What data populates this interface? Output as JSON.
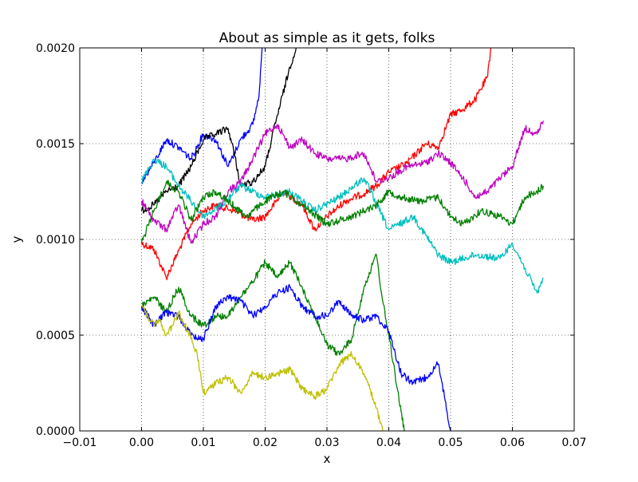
{
  "chart_data": {
    "type": "line",
    "title": "About as simple as it gets, folks",
    "xlabel": "x",
    "ylabel": "y",
    "xlim": [
      -0.01,
      0.07
    ],
    "ylim": [
      0.0,
      0.002
    ],
    "grid": true,
    "xticks": [
      {
        "value": -0.01,
        "label": "−0.01"
      },
      {
        "value": 0.0,
        "label": "0.00"
      },
      {
        "value": 0.01,
        "label": "0.01"
      },
      {
        "value": 0.02,
        "label": "0.02"
      },
      {
        "value": 0.03,
        "label": "0.03"
      },
      {
        "value": 0.04,
        "label": "0.04"
      },
      {
        "value": 0.05,
        "label": "0.05"
      },
      {
        "value": 0.06,
        "label": "0.06"
      },
      {
        "value": 0.07,
        "label": "0.07"
      }
    ],
    "yticks": [
      {
        "value": 0.0,
        "label": "0.0000"
      },
      {
        "value": 0.0005,
        "label": "0.0005"
      },
      {
        "value": 0.001,
        "label": "0.0010"
      },
      {
        "value": 0.0015,
        "label": "0.0015"
      },
      {
        "value": 0.002,
        "label": "0.0020"
      }
    ],
    "series": [
      {
        "color": "#ff0000",
        "x": [
          0.0,
          0.002,
          0.004,
          0.006,
          0.008,
          0.01,
          0.012,
          0.015,
          0.018,
          0.02,
          0.023,
          0.026,
          0.028,
          0.03,
          0.033,
          0.036,
          0.038,
          0.04,
          0.043,
          0.046,
          0.048,
          0.05,
          0.052,
          0.054,
          0.056,
          0.0565
        ],
        "y": [
          0.00098,
          0.00095,
          0.0008,
          0.00094,
          0.00108,
          0.00115,
          0.00118,
          0.00115,
          0.0011,
          0.00112,
          0.00125,
          0.00118,
          0.00105,
          0.00112,
          0.0012,
          0.00124,
          0.00128,
          0.00135,
          0.0014,
          0.0015,
          0.00148,
          0.00165,
          0.00168,
          0.00173,
          0.00185,
          0.002
        ]
      },
      {
        "color": "#0000ff",
        "x": [
          0.0,
          0.002,
          0.004,
          0.006,
          0.008,
          0.01,
          0.012,
          0.014,
          0.016,
          0.018,
          0.019,
          0.0195
        ],
        "y": [
          0.0013,
          0.0014,
          0.00152,
          0.00148,
          0.00142,
          0.00155,
          0.00152,
          0.00138,
          0.00152,
          0.0016,
          0.00175,
          0.002
        ]
      },
      {
        "color": "#000000",
        "x": [
          0.0,
          0.002,
          0.004,
          0.006,
          0.008,
          0.01,
          0.012,
          0.014,
          0.015,
          0.016,
          0.018,
          0.02,
          0.022,
          0.024,
          0.025
        ],
        "y": [
          0.00115,
          0.00118,
          0.00125,
          0.00128,
          0.00138,
          0.00152,
          0.00155,
          0.00158,
          0.00145,
          0.00128,
          0.0013,
          0.00138,
          0.00165,
          0.0019,
          0.002
        ]
      },
      {
        "color": "#00bfbf",
        "x": [
          0.0,
          0.002,
          0.004,
          0.006,
          0.008,
          0.01,
          0.013,
          0.016,
          0.02,
          0.024,
          0.028,
          0.032,
          0.036,
          0.04,
          0.044,
          0.048,
          0.05,
          0.054,
          0.058,
          0.06,
          0.062,
          0.064,
          0.065
        ],
        "y": [
          0.0013,
          0.00142,
          0.00138,
          0.00128,
          0.0012,
          0.00112,
          0.00118,
          0.00128,
          0.00122,
          0.00125,
          0.00115,
          0.00122,
          0.00132,
          0.00105,
          0.00112,
          0.00092,
          0.00088,
          0.00092,
          0.0009,
          0.00098,
          0.00085,
          0.00072,
          0.0008
        ]
      },
      {
        "color": "#bf00bf",
        "x": [
          0.0,
          0.002,
          0.004,
          0.006,
          0.008,
          0.01,
          0.012,
          0.014,
          0.016,
          0.018,
          0.02,
          0.022,
          0.024,
          0.026,
          0.028,
          0.03,
          0.033,
          0.036,
          0.038,
          0.04,
          0.043,
          0.046,
          0.048,
          0.05,
          0.052,
          0.054,
          0.056,
          0.058,
          0.06,
          0.062,
          0.064,
          0.065
        ],
        "y": [
          0.0012,
          0.0011,
          0.00105,
          0.00118,
          0.00098,
          0.00108,
          0.00112,
          0.00125,
          0.0013,
          0.00142,
          0.00155,
          0.0016,
          0.00148,
          0.00152,
          0.00145,
          0.00142,
          0.00142,
          0.00145,
          0.0013,
          0.00132,
          0.00138,
          0.0014,
          0.00145,
          0.0014,
          0.00132,
          0.00122,
          0.00125,
          0.00132,
          0.00138,
          0.00158,
          0.00155,
          0.00162
        ]
      },
      {
        "color": "#008000",
        "x": [
          0.0,
          0.002,
          0.004,
          0.006,
          0.008,
          0.01,
          0.012,
          0.014,
          0.017,
          0.02,
          0.023,
          0.026,
          0.03,
          0.034,
          0.038,
          0.04,
          0.042,
          0.045,
          0.048,
          0.05,
          0.052,
          0.055,
          0.058,
          0.06,
          0.062,
          0.064,
          0.065
        ],
        "y": [
          0.00098,
          0.00115,
          0.0013,
          0.00125,
          0.0011,
          0.00122,
          0.00125,
          0.0012,
          0.00112,
          0.0012,
          0.00125,
          0.00118,
          0.00108,
          0.00112,
          0.00118,
          0.00125,
          0.00122,
          0.0012,
          0.00122,
          0.00112,
          0.00108,
          0.00115,
          0.00112,
          0.00108,
          0.00122,
          0.00125,
          0.00128
        ]
      },
      {
        "color": "#008000",
        "x": [
          0.0,
          0.002,
          0.004,
          0.006,
          0.008,
          0.01,
          0.012,
          0.014,
          0.016,
          0.018,
          0.02,
          0.022,
          0.024,
          0.026,
          0.028,
          0.03,
          0.032,
          0.034,
          0.036,
          0.038,
          0.039,
          0.04,
          0.041,
          0.042,
          0.0425
        ],
        "y": [
          0.00065,
          0.0007,
          0.00062,
          0.00075,
          0.0006,
          0.00055,
          0.0006,
          0.0006,
          0.0007,
          0.00078,
          0.00088,
          0.0008,
          0.00088,
          0.00075,
          0.0006,
          0.00045,
          0.0004,
          0.00048,
          0.00075,
          0.00092,
          0.00068,
          0.0005,
          0.0003,
          0.0001,
          0.0
        ]
      },
      {
        "color": "#0000ff",
        "x": [
          0.0,
          0.002,
          0.004,
          0.006,
          0.008,
          0.01,
          0.012,
          0.014,
          0.016,
          0.018,
          0.02,
          0.022,
          0.024,
          0.026,
          0.028,
          0.03,
          0.032,
          0.034,
          0.036,
          0.038,
          0.04,
          0.042,
          0.044,
          0.046,
          0.048,
          0.049,
          0.05
        ],
        "y": [
          0.00065,
          0.00055,
          0.00062,
          0.0006,
          0.0005,
          0.00048,
          0.00065,
          0.0007,
          0.00068,
          0.0006,
          0.00065,
          0.00072,
          0.00075,
          0.00065,
          0.0006,
          0.0006,
          0.00068,
          0.0006,
          0.00058,
          0.0006,
          0.00052,
          0.0003,
          0.00025,
          0.00028,
          0.00035,
          0.00018,
          0.0
        ]
      },
      {
        "color": "#bfbf00",
        "x": [
          0.0,
          0.001,
          0.002,
          0.003,
          0.004,
          0.005,
          0.006,
          0.007,
          0.008,
          0.009,
          0.01,
          0.012,
          0.014,
          0.016,
          0.018,
          0.02,
          0.022,
          0.024,
          0.026,
          0.028,
          0.03,
          0.032,
          0.034,
          0.036,
          0.038,
          0.039
        ],
        "y": [
          0.00065,
          0.0006,
          0.00055,
          0.00058,
          0.0005,
          0.00055,
          0.00062,
          0.00055,
          0.00048,
          0.0004,
          0.0002,
          0.00025,
          0.00028,
          0.0002,
          0.0003,
          0.00028,
          0.0003,
          0.00032,
          0.00022,
          0.00018,
          0.00022,
          0.00035,
          0.0004,
          0.0003,
          0.00012,
          0.0
        ]
      }
    ]
  }
}
